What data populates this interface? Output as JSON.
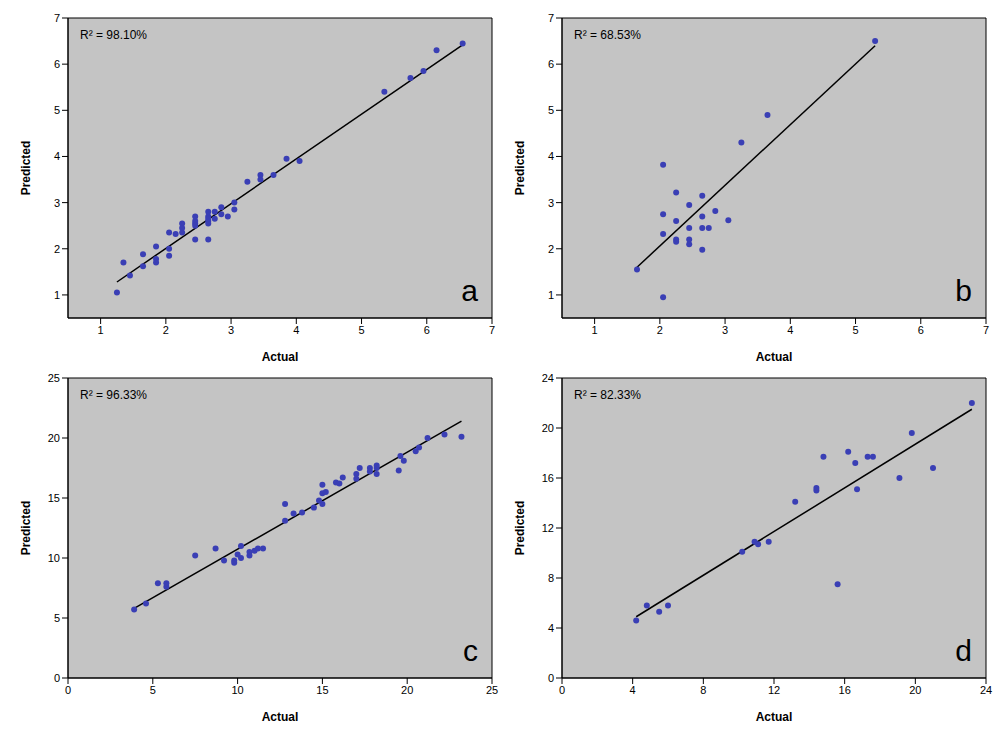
{
  "chart_data": [
    {
      "type": "scatter",
      "panel_label": "a",
      "annotation": "R² = 98.10%",
      "x_label": "Actual",
      "y_label": "Predicted",
      "xlim": [
        0.5,
        7
      ],
      "xticks": [
        1,
        2,
        3,
        4,
        5,
        6,
        7
      ],
      "ylim": [
        0.5,
        7
      ],
      "yticks": [
        1,
        2,
        3,
        4,
        5,
        6,
        7
      ],
      "grid": false,
      "color": "#3a3fb5",
      "marker": "circle",
      "x": [
        1.25,
        1.35,
        1.45,
        1.65,
        1.65,
        1.85,
        1.85,
        1.85,
        2.05,
        2.05,
        2.05,
        2.15,
        2.25,
        2.25,
        2.25,
        2.45,
        2.45,
        2.45,
        2.45,
        2.45,
        2.65,
        2.65,
        2.65,
        2.65,
        2.65,
        2.65,
        2.75,
        2.75,
        2.85,
        2.85,
        2.95,
        3.05,
        3.05,
        3.25,
        3.45,
        3.45,
        3.65,
        3.85,
        4.05,
        5.35,
        5.75,
        5.95,
        6.15,
        6.55
      ],
      "values": [
        1.05,
        1.7,
        1.42,
        1.88,
        1.62,
        1.78,
        2.05,
        1.7,
        2.0,
        1.85,
        2.35,
        2.32,
        2.55,
        2.35,
        2.45,
        2.55,
        2.2,
        2.6,
        2.7,
        2.5,
        2.6,
        2.7,
        2.8,
        2.55,
        2.2,
        2.65,
        2.8,
        2.65,
        2.9,
        2.75,
        2.7,
        3.0,
        2.85,
        3.45,
        3.5,
        3.6,
        3.6,
        3.95,
        3.9,
        5.4,
        5.7,
        5.85,
        6.3,
        6.45
      ],
      "fit_line": {
        "x": [
          1.25,
          6.55
        ],
        "values": [
          1.28,
          6.42
        ],
        "color": "#000000"
      }
    },
    {
      "type": "scatter",
      "panel_label": "b",
      "annotation": "R² = 68.53%",
      "x_label": "Actual",
      "y_label": "Predicted",
      "xlim": [
        0.5,
        7
      ],
      "xticks": [
        1,
        2,
        3,
        4,
        5,
        6,
        7
      ],
      "ylim": [
        0.5,
        7
      ],
      "yticks": [
        1,
        2,
        3,
        4,
        5,
        6,
        7
      ],
      "grid": false,
      "color": "#3a3fb5",
      "marker": "circle",
      "x": [
        1.65,
        2.05,
        2.05,
        2.05,
        2.05,
        2.25,
        2.25,
        2.25,
        2.25,
        2.45,
        2.45,
        2.45,
        2.45,
        2.65,
        2.65,
        2.65,
        2.65,
        2.75,
        2.85,
        3.05,
        3.25,
        3.65,
        5.3
      ],
      "values": [
        1.55,
        0.95,
        2.32,
        2.75,
        3.82,
        2.2,
        2.15,
        2.6,
        3.22,
        2.45,
        2.2,
        2.1,
        2.95,
        1.98,
        2.45,
        2.7,
        3.15,
        2.45,
        2.82,
        2.62,
        4.3,
        4.9,
        6.5
      ],
      "fit_line": {
        "x": [
          1.65,
          5.3
        ],
        "values": [
          1.6,
          6.4
        ],
        "color": "#000000"
      }
    },
    {
      "type": "scatter",
      "panel_label": "c",
      "annotation": "R² = 96.33%",
      "x_label": "Actual",
      "y_label": "Predicted",
      "xlim": [
        0,
        25
      ],
      "xticks": [
        0,
        5,
        10,
        15,
        20,
        25
      ],
      "ylim": [
        0,
        25
      ],
      "yticks": [
        0,
        5,
        10,
        15,
        20,
        25
      ],
      "grid": false,
      "color": "#3a3fb5",
      "marker": "circle",
      "x": [
        3.9,
        4.6,
        5.3,
        5.8,
        5.8,
        7.5,
        8.7,
        9.2,
        9.8,
        9.8,
        10,
        10.2,
        10.2,
        10.7,
        10.7,
        11,
        11.2,
        11.5,
        12.8,
        12.8,
        13.3,
        13.8,
        14.5,
        14.8,
        15,
        15,
        15,
        15.2,
        15.8,
        16,
        16.2,
        17,
        17,
        17.2,
        17.8,
        17.8,
        18.2,
        18.2,
        18.2,
        19.5,
        19.6,
        19.8,
        20.5,
        20.7,
        21.2,
        22.2,
        23.2
      ],
      "values": [
        5.7,
        6.2,
        7.9,
        7.6,
        7.9,
        10.2,
        10.8,
        9.8,
        9.8,
        9.6,
        10.3,
        11,
        10,
        10.2,
        10.5,
        10.6,
        10.8,
        10.8,
        14.5,
        13.1,
        13.7,
        13.8,
        14.2,
        14.8,
        15.4,
        16.1,
        14.5,
        15.5,
        16.3,
        16.2,
        16.7,
        16.6,
        17,
        17.5,
        17.5,
        17.2,
        17.5,
        17.7,
        17,
        17.3,
        18.5,
        18.1,
        18.9,
        19.2,
        20,
        20.3,
        20.1
      ],
      "fit_line": {
        "x": [
          3.9,
          23.2
        ],
        "values": [
          5.8,
          21.4
        ],
        "color": "#000000"
      }
    },
    {
      "type": "scatter",
      "panel_label": "d",
      "annotation": "R² = 82.33%",
      "x_label": "Actual",
      "y_label": "Predicted",
      "xlim": [
        0,
        24
      ],
      "xticks": [
        0,
        4,
        8,
        12,
        16,
        20,
        24
      ],
      "ylim": [
        0,
        24
      ],
      "yticks": [
        0,
        4,
        8,
        12,
        16,
        20,
        24
      ],
      "grid": false,
      "color": "#3a3fb5",
      "marker": "circle",
      "x": [
        4.2,
        4.8,
        5.5,
        6,
        10.2,
        10.9,
        11.1,
        11.7,
        13.2,
        14.4,
        14.4,
        14.8,
        15.6,
        16.2,
        16.6,
        16.7,
        17.3,
        17.6,
        19.1,
        19.8,
        21,
        23.2
      ],
      "values": [
        4.6,
        5.8,
        5.3,
        5.8,
        10.1,
        10.9,
        10.7,
        10.9,
        14.1,
        15,
        15.2,
        17.7,
        7.5,
        18.1,
        17.2,
        15.1,
        17.7,
        17.7,
        16,
        19.6,
        16.8,
        22
      ],
      "fit_line": {
        "x": [
          4.2,
          23.2
        ],
        "values": [
          4.9,
          21.5
        ],
        "color": "#000000"
      }
    }
  ]
}
